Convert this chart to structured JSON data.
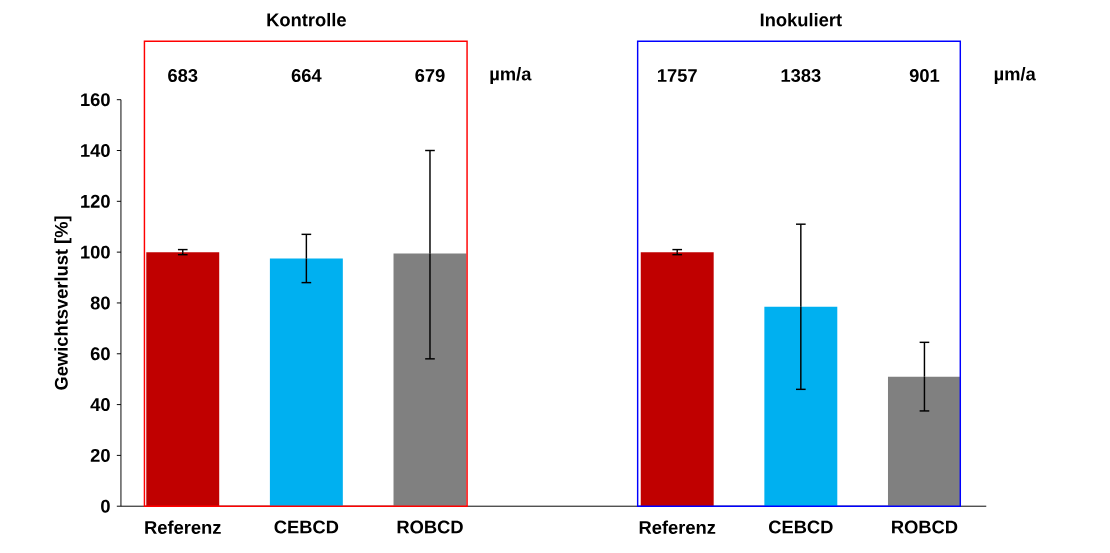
{
  "chart_data": {
    "type": "bar",
    "ylabel": "Gewichtsverlust [%]",
    "categories": [
      "Referenz",
      "CEBCD",
      "ROBCD",
      null,
      "Referenz",
      "CEBCD",
      "ROBCD"
    ],
    "values": [
      100,
      97.5,
      99.5,
      0,
      100,
      78.5,
      51
    ],
    "colors": [
      "#c00000",
      "#00b0f0",
      "#808080",
      "#000000",
      "#c00000",
      "#00b0f0",
      "#808080"
    ],
    "errors": [
      [
        99,
        101
      ],
      [
        88,
        107
      ],
      [
        58,
        140
      ],
      null,
      [
        99,
        101
      ],
      [
        46,
        111
      ],
      [
        37.5,
        64.5
      ]
    ],
    "ylim": [
      0,
      160
    ],
    "yticks": [
      0,
      20,
      40,
      60,
      80,
      100,
      120,
      140,
      160
    ],
    "grid": false,
    "annotations": [
      "Kontrolle",
      "Inokuliert",
      "683",
      "664",
      "679",
      "µm/a",
      "1757",
      "1383",
      "901",
      "µm/a"
    ]
  }
}
